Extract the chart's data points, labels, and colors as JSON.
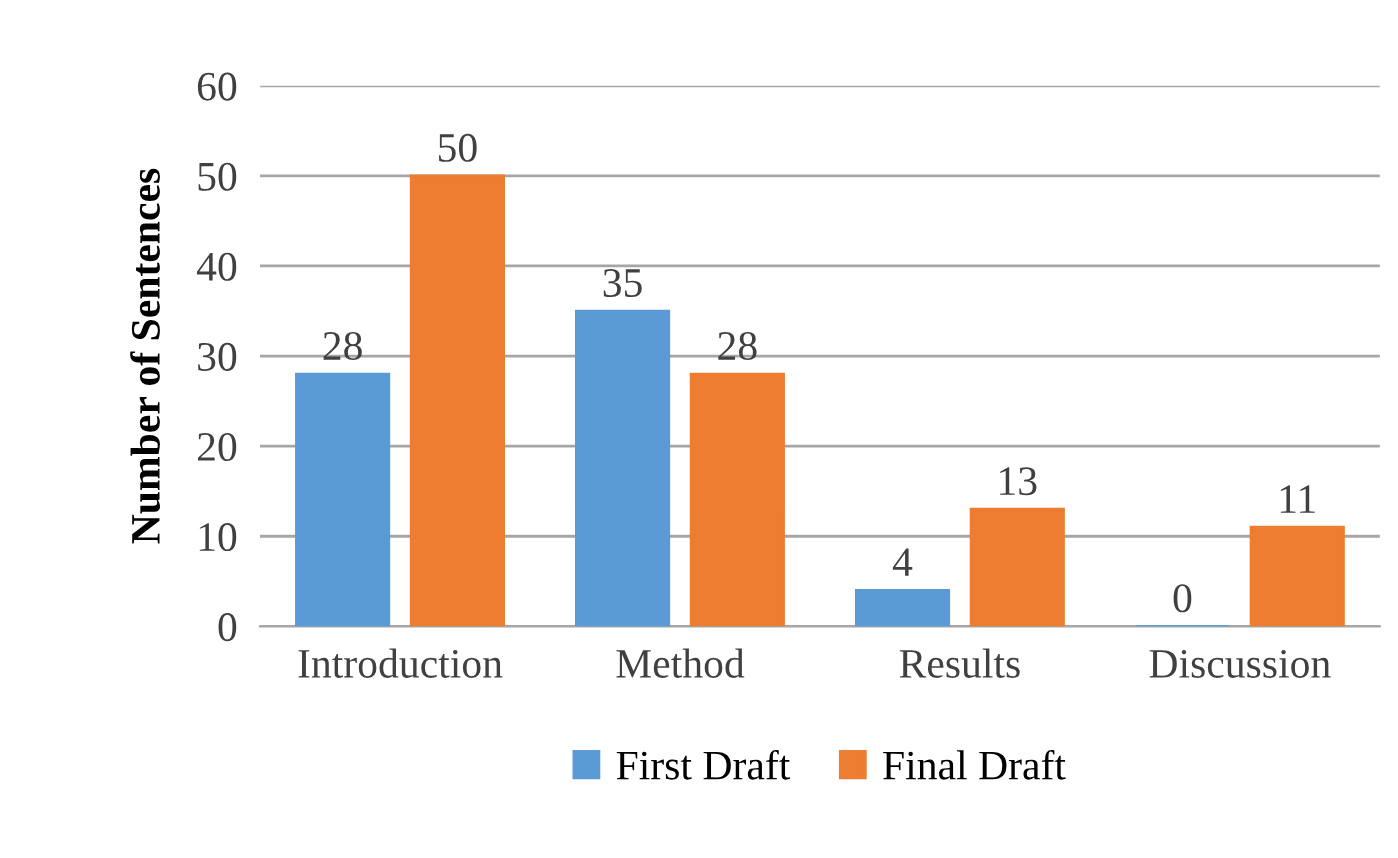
{
  "chart_data": {
    "type": "bar",
    "ylabel": "Number of Sentences",
    "categories": [
      "Introduction",
      "Method",
      "Results",
      "Discussion"
    ],
    "series": [
      {
        "name": "First Draft",
        "color": "#5b9bd5",
        "values": [
          28,
          35,
          4,
          0
        ]
      },
      {
        "name": "Final Draft",
        "color": "#ed7d31",
        "values": [
          50,
          28,
          13,
          11
        ]
      }
    ],
    "ylim": [
      0,
      60
    ],
    "yticks": [
      0,
      10,
      20,
      30,
      40,
      50,
      60
    ],
    "grid": "y",
    "legend": "bottom",
    "data_labels": true
  }
}
